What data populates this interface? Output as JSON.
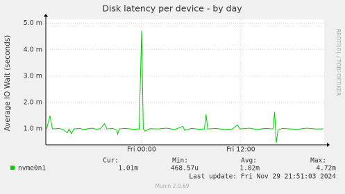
{
  "chart_data": {
    "type": "line",
    "title": "Disk latency per device - by day",
    "y_label": "Average IO Wait (seconds)",
    "side_text": "RRDTOOL / TOBI OETIKER",
    "x": [
      -11.5,
      -11.1,
      -10.8,
      -10.0,
      -9.5,
      -9.0,
      -8.8,
      -8.5,
      -8.2,
      -7.5,
      -7.0,
      -6.0,
      -5.5,
      -5.0,
      -4.5,
      -4.2,
      -3.5,
      -3.0,
      -2.9,
      -2.7,
      -2.0,
      -1.0,
      -0.3,
      0.0,
      0.2,
      0.4,
      1.0,
      2.0,
      3.0,
      4.0,
      5.0,
      5.2,
      6.0,
      7.0,
      7.6,
      7.8,
      8.0,
      9.0,
      10.0,
      11.0,
      11.6,
      11.9,
      13.0,
      14.0,
      15.0,
      15.9,
      16.1,
      16.3,
      16.5,
      17.0,
      18.0,
      19.0,
      20.0,
      21.0,
      22.0
    ],
    "series": [
      {
        "name": "nvme0n1",
        "color": "#00cc00",
        "values": [
          1.0,
          1.5,
          1.0,
          1.02,
          0.98,
          0.85,
          1.0,
          0.82,
          1.0,
          1.02,
          0.98,
          1.03,
          0.99,
          1.01,
          1.2,
          1.0,
          1.02,
          0.95,
          0.8,
          1.0,
          1.02,
          0.99,
          1.0,
          4.72,
          1.0,
          0.92,
          1.01,
          1.0,
          1.03,
          0.98,
          1.1,
          0.95,
          1.02,
          0.99,
          1.0,
          1.55,
          1.0,
          1.02,
          0.98,
          1.0,
          1.15,
          1.0,
          1.03,
          0.98,
          1.02,
          1.0,
          1.65,
          0.47,
          0.95,
          1.02,
          1.0,
          0.99,
          1.03,
          1.0,
          1.0
        ],
        "stats": [
          "1.01m",
          "468.57u",
          "1.02m",
          "4.72m"
        ]
      }
    ],
    "stats_headers": [
      "Cur:",
      "Min:",
      "Avg:",
      "Max:"
    ],
    "xlim": [
      -11.6,
      22.1
    ],
    "xticks": [
      {
        "value": 0,
        "label": "Fri 00:00"
      },
      {
        "value": 12,
        "label": "Fri 12:00"
      }
    ],
    "ylim": [
      0.4,
      5.15
    ],
    "yticks": [
      {
        "value": 1.0,
        "label": "1.0 m"
      },
      {
        "value": 2.0,
        "label": "2.0 m"
      },
      {
        "value": 3.0,
        "label": "3.0 m"
      },
      {
        "value": 4.0,
        "label": "4.0 m"
      },
      {
        "value": 5.0,
        "label": "5.0 m"
      }
    ],
    "grid": true,
    "last_update": "Last update: Fri Nov 29 21:51:03 2024",
    "footer": "Munin 2.0.69"
  }
}
